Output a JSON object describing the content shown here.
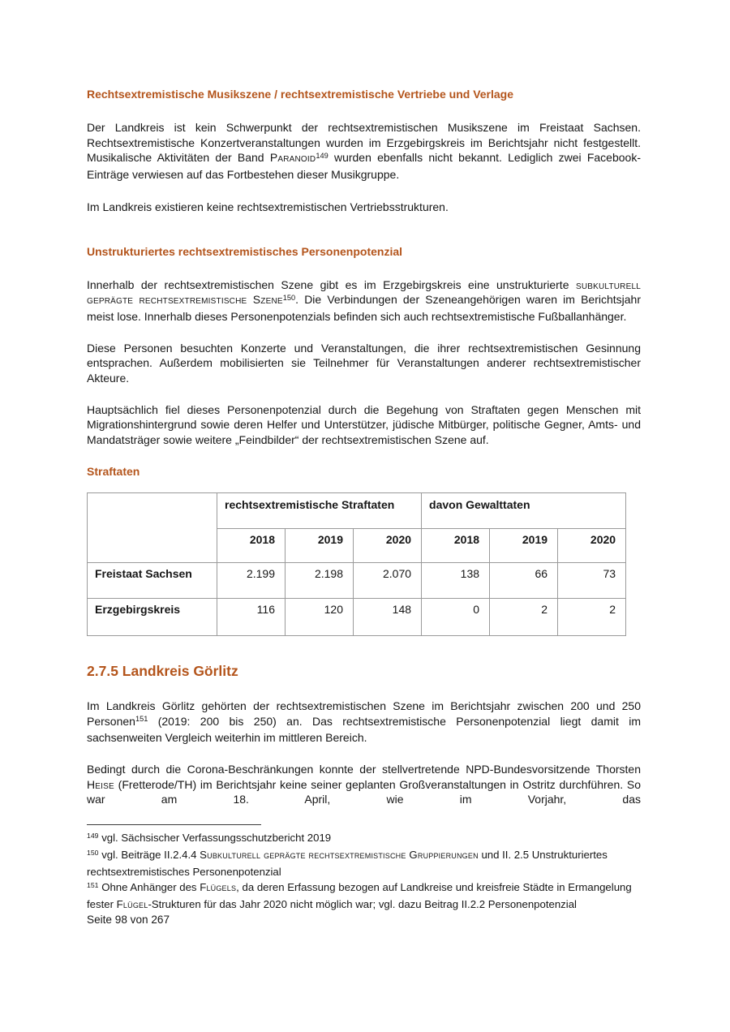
{
  "doc": {
    "heading_color": "#b4551c",
    "h_musikszene": "Rechtsextremistische Musikszene / rechtsextremistische Vertriebe und Verlage",
    "p_musikszene": [
      {
        "t": "Der Landkreis ist kein Schwerpunkt der rechtsextremistischen Musikszene im Freistaat Sachsen. Rechtsextremistische Konzertveranstaltungen wurden im Erzgebirgskreis im Berichtsjahr nicht festgestellt. Musikalische Aktivitäten der Band "
      },
      {
        "t": "Paranoid",
        "s": "sc"
      },
      {
        "t": "149",
        "s": "sup"
      },
      {
        "t": " wurden ebenfalls nicht bekannt. Lediglich zwei Facebook-Einträge verwiesen auf das Fortbestehen dieser Musikgruppe."
      }
    ],
    "p_vertrieb": "Im Landkreis existieren keine rechtsextremistischen Vertriebsstrukturen.",
    "h_personenpotenzial": "Unstrukturiertes rechtsextremistisches Personenpotenzial",
    "p_szene": [
      {
        "t": "Innerhalb der rechtsextremistischen Szene gibt es im Erzgebirgskreis eine unstrukturierte "
      },
      {
        "t": "subkulturell geprägte rechtsextremistische Szene",
        "s": "sc"
      },
      {
        "t": "150",
        "s": "sup"
      },
      {
        "t": ". Die Verbindungen der Szeneangehörigen waren im Berichtsjahr meist lose. Innerhalb dieses Personenpotenzials befinden sich auch rechtsextremistische Fußballanhänger."
      }
    ],
    "p_personen": "Diese Personen besuchten Konzerte und Veranstaltungen, die ihrer rechtsextremistischen Gesinnung entsprachen. Außerdem mobilisierten sie Teilnehmer für Veranstaltungen anderer rechtsextremistischer Akteure.",
    "p_straftaten_intro": "Hauptsächlich fiel dieses Personenpotenzial durch die Begehung von Straftaten gegen Menschen mit Migrationshintergrund sowie deren Helfer und Unterstützer, jüdische Mitbürger, politische Gegner, Amts- und Mandatsträger sowie weitere „Feindbilder“ der rechtsextremistischen Szene auf.",
    "h_straftaten": "Straftaten",
    "table": {
      "group1": "rechtsextremistische Straftaten",
      "group2": "davon Gewalttaten",
      "years": [
        "2018",
        "2019",
        "2020",
        "2018",
        "2019",
        "2020"
      ],
      "rows": [
        {
          "label": "Freistaat Sachsen",
          "values": [
            "2.199",
            "2.198",
            "2.070",
            "138",
            "66",
            "73"
          ]
        },
        {
          "label": "Erzgebirgskreis",
          "values": [
            "116",
            "120",
            "148",
            "0",
            "2",
            "2"
          ]
        }
      ]
    },
    "h_goerlitz": "2.7.5 Landkreis Görlitz",
    "p_goerlitz1": [
      {
        "t": "Im Landkreis Görlitz gehörten der rechtsextremistischen Szene im Berichtsjahr zwischen 200 und 250 Personen"
      },
      {
        "t": "151",
        "s": "sup"
      },
      {
        "t": " (2019: 200 bis 250) an. Das rechtsextremistische Personenpotenzial liegt damit im sachsenweiten Vergleich weiterhin im mittleren Bereich."
      }
    ],
    "p_goerlitz2": [
      {
        "t": "Bedingt durch die Corona-Beschränkungen konnte der stellvertretende NPD-Bundesvorsitzende Thorsten "
      },
      {
        "t": "Heise",
        "s": "sc"
      },
      {
        "t": " (Fretterode/TH) im Berichtsjahr keine seiner geplanten Großveranstaltungen in Ostritz durchführen. So war am 18. April, wie im Vorjahr, das"
      }
    ],
    "footnotes": [
      {
        "segments": [
          {
            "t": "149",
            "s": "sup"
          },
          {
            "t": " vgl. Sächsischer Verfassungsschutzbericht 2019"
          }
        ]
      },
      {
        "segments": [
          {
            "t": "150",
            "s": "sup"
          },
          {
            "t": " vgl. Beiträge II.2.4.4 "
          },
          {
            "t": "Subkulturell geprägte rechtsextremistische Gruppierungen",
            "s": "sc"
          },
          {
            "t": " und II. 2.5 Unstrukturiertes rechtsextremistisches Personenpotenzial"
          }
        ]
      },
      {
        "segments": [
          {
            "t": "151",
            "s": "sup"
          },
          {
            "t": " Ohne Anhänger des "
          },
          {
            "t": "Flügels",
            "s": "sc"
          },
          {
            "t": ", da deren Erfassung bezogen auf Landkreise und kreisfreie Städte in Ermangelung fester "
          },
          {
            "t": "Flügel",
            "s": "sc"
          },
          {
            "t": "-Strukturen für das Jahr 2020 nicht möglich war; vgl. dazu Beitrag II.2.2 Personenpotenzial"
          }
        ]
      }
    ],
    "footer": "Seite 98 von 267"
  }
}
